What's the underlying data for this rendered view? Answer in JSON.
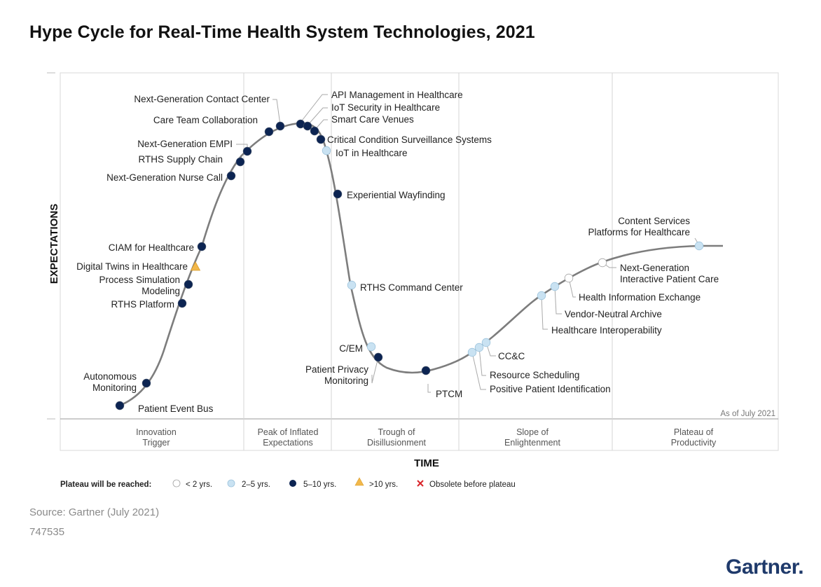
{
  "title": "Hype Cycle for Real-Time Health System Technologies, 2021",
  "source": "Source: Gartner (July 2021)",
  "doc_id": "747535",
  "brand": "Gartner.",
  "colors": {
    "navy": "#0c2452",
    "light_blue": "#c9e2f2",
    "white_dot": "#ffffff",
    "triangle": "#f2b84b",
    "obsolete": "#d9262b",
    "curve": "#7d7d7d"
  },
  "chart_data": {
    "type": "scatter",
    "title": "Hype Cycle for Real-Time Health System Technologies, 2021",
    "xlabel": "TIME",
    "ylabel": "EXPECTATIONS",
    "annotation": "As of July 2021",
    "phases": [
      "Innovation Trigger",
      "Peak of Inflated Expectations",
      "Trough of Disillusionment",
      "Slope of Enlightenment",
      "Plateau of Productivity"
    ],
    "legend": {
      "title": "Plateau will be reached:",
      "items": [
        {
          "label": "< 2 yrs.",
          "symbol": "white"
        },
        {
          "label": "2–5 yrs.",
          "symbol": "light"
        },
        {
          "label": "5–10 yrs.",
          "symbol": "navy"
        },
        {
          "label": ">10 yrs.",
          "symbol": "triangle"
        },
        {
          "label": "Obsolete before plateau",
          "symbol": "x"
        }
      ]
    },
    "technologies": [
      {
        "name": "Patient Event Bus",
        "phase": "Innovation Trigger",
        "plateau": "5–10 yrs."
      },
      {
        "name": "Autonomous Monitoring",
        "phase": "Innovation Trigger",
        "plateau": "5–10 yrs."
      },
      {
        "name": "RTHS Platform",
        "phase": "Innovation Trigger",
        "plateau": "5–10 yrs."
      },
      {
        "name": "Process Simulation Modeling",
        "phase": "Innovation Trigger",
        "plateau": "5–10 yrs."
      },
      {
        "name": "Digital Twins in Healthcare",
        "phase": "Innovation Trigger",
        "plateau": ">10 yrs."
      },
      {
        "name": "CIAM for Healthcare",
        "phase": "Innovation Trigger",
        "plateau": "5–10 yrs."
      },
      {
        "name": "Next-Generation Nurse Call",
        "phase": "Innovation Trigger",
        "plateau": "5–10 yrs."
      },
      {
        "name": "RTHS Supply Chain",
        "phase": "Peak of Inflated Expectations",
        "plateau": "5–10 yrs."
      },
      {
        "name": "Next-Generation EMPI",
        "phase": "Peak of Inflated Expectations",
        "plateau": "5–10 yrs."
      },
      {
        "name": "Care Team Collaboration",
        "phase": "Peak of Inflated Expectations",
        "plateau": "5–10 yrs."
      },
      {
        "name": "Next-Generation Contact Center",
        "phase": "Peak of Inflated Expectations",
        "plateau": "5–10 yrs."
      },
      {
        "name": "API Management in Healthcare",
        "phase": "Peak of Inflated Expectations",
        "plateau": "5–10 yrs."
      },
      {
        "name": "IoT Security in Healthcare",
        "phase": "Peak of Inflated Expectations",
        "plateau": "5–10 yrs."
      },
      {
        "name": "Smart Care Venues",
        "phase": "Peak of Inflated Expectations",
        "plateau": "5–10 yrs."
      },
      {
        "name": "Critical Condition Surveillance Systems",
        "phase": "Peak of Inflated Expectations",
        "plateau": "5–10 yrs."
      },
      {
        "name": "IoT in Healthcare",
        "phase": "Peak of Inflated Expectations",
        "plateau": "2–5 yrs."
      },
      {
        "name": "Experiential Wayfinding",
        "phase": "Trough of Disillusionment",
        "plateau": "5–10 yrs."
      },
      {
        "name": "RTHS Command Center",
        "phase": "Trough of Disillusionment",
        "plateau": "2–5 yrs."
      },
      {
        "name": "C/EM",
        "phase": "Trough of Disillusionment",
        "plateau": "2–5 yrs."
      },
      {
        "name": "Patient Privacy Monitoring",
        "phase": "Trough of Disillusionment",
        "plateau": "5–10 yrs."
      },
      {
        "name": "PTCM",
        "phase": "Trough of Disillusionment",
        "plateau": "5–10 yrs."
      },
      {
        "name": "Positive Patient Identification",
        "phase": "Slope of Enlightenment",
        "plateau": "2–5 yrs."
      },
      {
        "name": "Resource Scheduling",
        "phase": "Slope of Enlightenment",
        "plateau": "2–5 yrs."
      },
      {
        "name": "CC&C",
        "phase": "Slope of Enlightenment",
        "plateau": "2–5 yrs."
      },
      {
        "name": "Healthcare Interoperability",
        "phase": "Slope of Enlightenment",
        "plateau": "2–5 yrs."
      },
      {
        "name": "Vendor-Neutral Archive",
        "phase": "Slope of Enlightenment",
        "plateau": "2–5 yrs."
      },
      {
        "name": "Health Information Exchange",
        "phase": "Slope of Enlightenment",
        "plateau": "< 2 yrs."
      },
      {
        "name": "Next-Generation Interactive Patient Care",
        "phase": "Slope of Enlightenment",
        "plateau": "< 2 yrs."
      },
      {
        "name": "Content Services Platforms for Healthcare",
        "phase": "Plateau of Productivity",
        "plateau": "2–5 yrs."
      }
    ]
  }
}
